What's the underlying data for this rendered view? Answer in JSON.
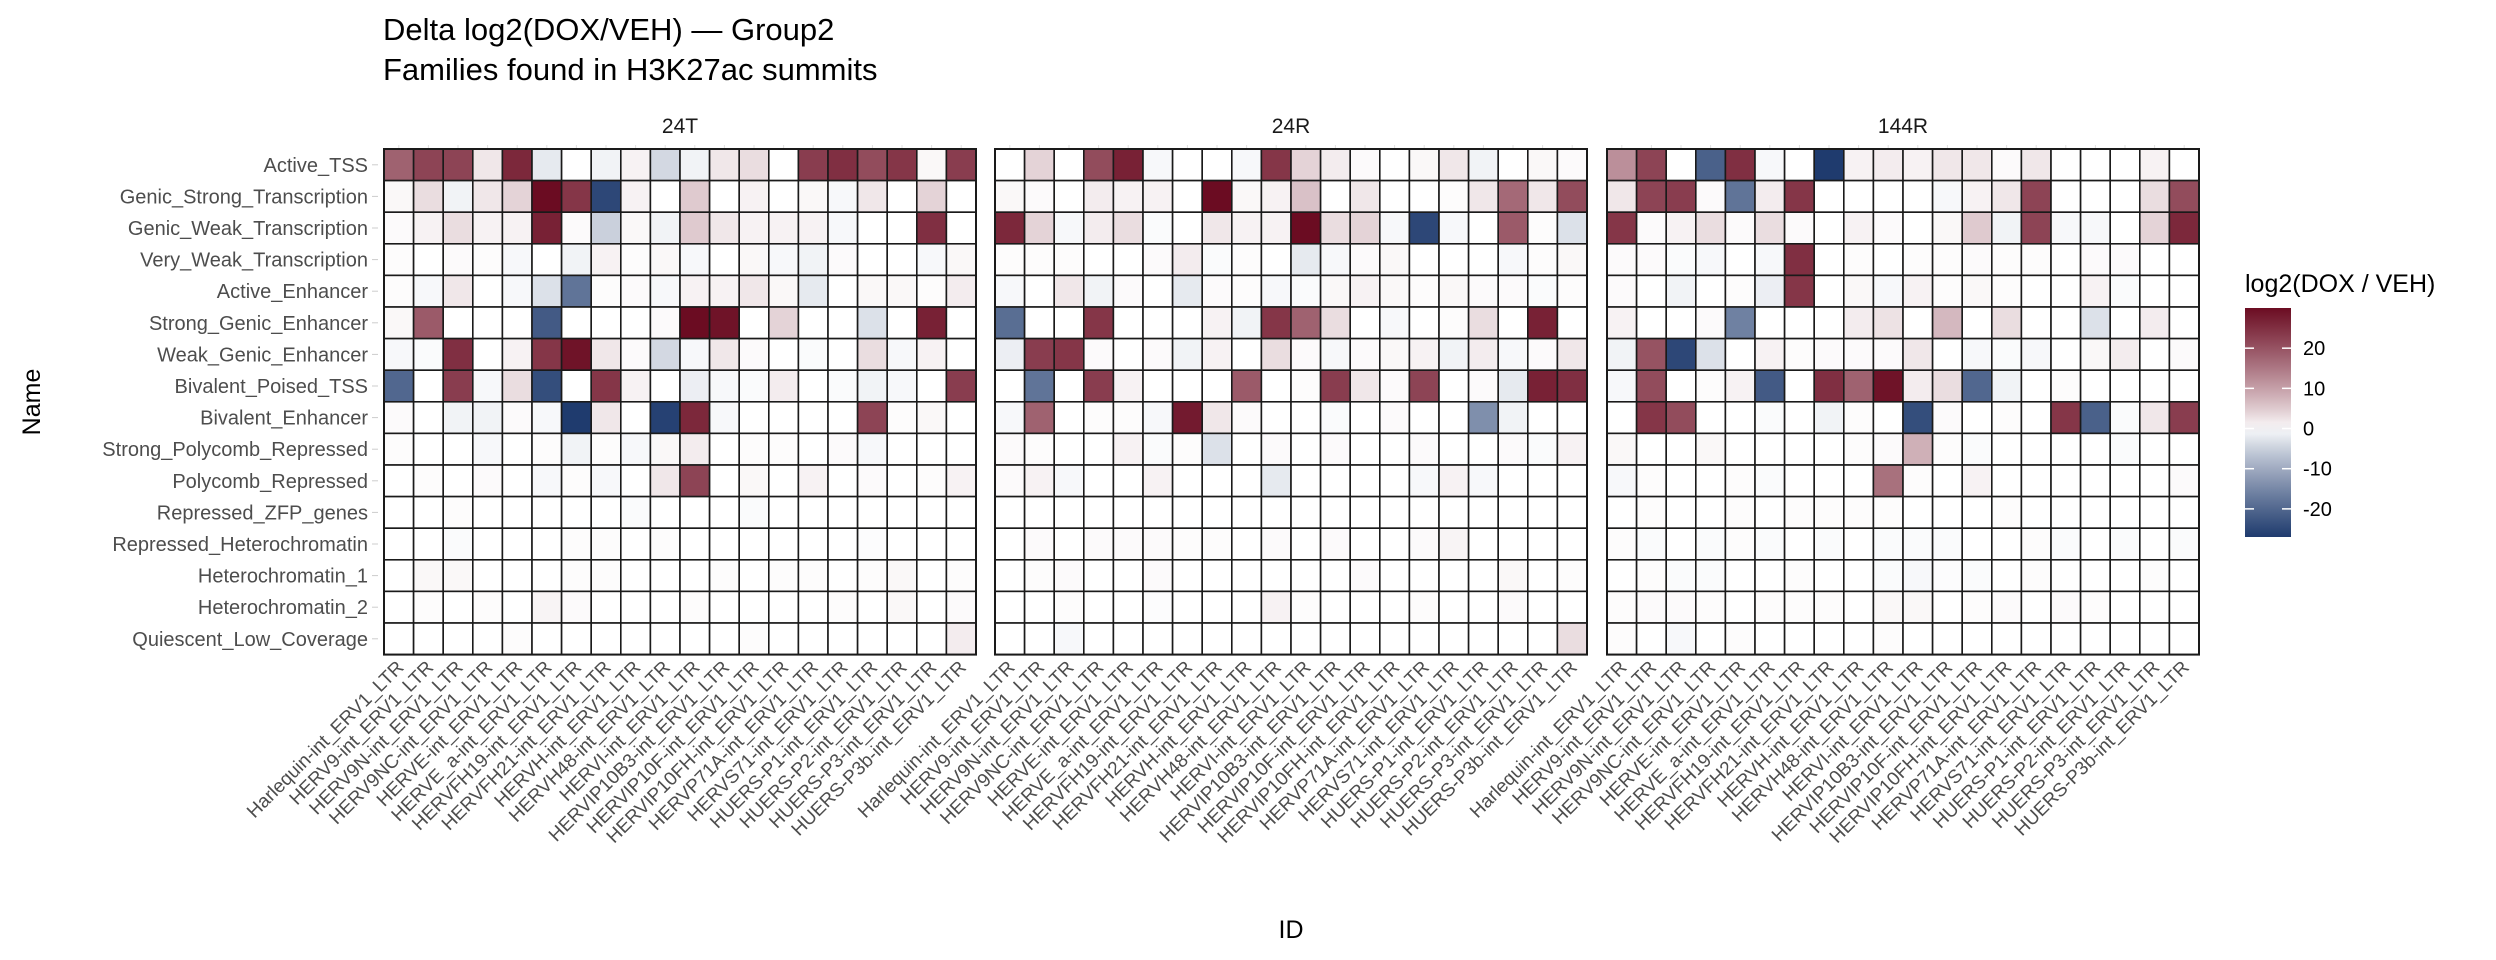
{
  "chart_data": {
    "type": "heatmap",
    "title": "Delta log2(DOX/VEH) — Group2",
    "subtitle": "Families found in H3K27ac summits",
    "xlabel": "ID",
    "ylabel": "Name",
    "legend": {
      "title": "log2(DOX / VEH)",
      "ticks": [
        20,
        10,
        0,
        -10,
        -20
      ],
      "tick_labels": [
        "20",
        "10",
        "0",
        "-10",
        "-20"
      ],
      "range": [
        -27,
        30
      ],
      "low_color": "#1f3b6e",
      "mid_color": "#ffffff",
      "high_color": "#6b0c22",
      "placement": "right"
    },
    "rows": [
      "Active_TSS",
      "Genic_Strong_Transcription",
      "Genic_Weak_Transcription",
      "Very_Weak_Transcription",
      "Active_Enhancer",
      "Strong_Genic_Enhancer",
      "Weak_Genic_Enhancer",
      "Bivalent_Poised_TSS",
      "Bivalent_Enhancer",
      "Strong_Polycomb_Repressed",
      "Polycomb_Repressed",
      "Repressed_ZFP_genes",
      "Repressed_Heterochromatin",
      "Heterochromatin_1",
      "Heterochromatin_2",
      "Quiescent_Low_Coverage"
    ],
    "columns": [
      "Harlequin-int_ERV1_LTR",
      "HERV9-int_ERV1_LTR",
      "HERV9N-int_ERV1_LTR",
      "HERV9NC-int_ERV1_LTR",
      "HERVE-int_ERV1_LTR",
      "HERVE_a-int_ERV1_LTR",
      "HERVFH19-int_ERV1_LTR",
      "HERVFH21-int_ERV1_LTR",
      "HERVH-int_ERV1_LTR",
      "HERVH48-int_ERV1_LTR",
      "HERVI-int_ERV1_LTR",
      "HERVIP10B3-int_ERV1_LTR",
      "HERVIP10F-int_ERV1_LTR",
      "HERVIP10FH-int_ERV1_LTR",
      "HERVP71A-int_ERV1_LTR",
      "HERVS71-int_ERV1_LTR",
      "HUERS-P1-int_ERV1_LTR",
      "HUERS-P2-int_ERV1_LTR",
      "HUERS-P3-int_ERV1_LTR",
      "HUERS-P3b-int_ERV1_LTR"
    ],
    "facets": [
      {
        "name": "24T",
        "values": [
          [
            18,
            22,
            22,
            2,
            26,
            -2,
            0,
            -1,
            1,
            -4,
            -1,
            2,
            3,
            0,
            23,
            25,
            21,
            24,
            0.5,
            23
          ],
          [
            0.5,
            3,
            -1,
            2,
            4,
            30,
            24,
            -25,
            1,
            0,
            5,
            0,
            1,
            0,
            0.5,
            -0.5,
            2,
            0,
            4,
            0
          ],
          [
            0.3,
            1,
            3,
            1,
            1,
            27,
            0.3,
            -5,
            0.5,
            -1,
            5,
            2,
            1,
            1,
            1,
            -0.5,
            0,
            0,
            25,
            0
          ],
          [
            0.2,
            0,
            0.3,
            0.2,
            -0.5,
            0,
            -1,
            1,
            0.2,
            0.5,
            -0.5,
            0,
            0.5,
            -0.5,
            -1,
            0.3,
            0,
            0,
            -0.5,
            0.5
          ],
          [
            0.2,
            -0.5,
            2,
            0,
            -0.5,
            -3,
            -18,
            0.2,
            0.3,
            -0.5,
            1,
            1,
            2,
            0.5,
            -2,
            0,
            0.5,
            0.5,
            0.2,
            1.5
          ],
          [
            0.5,
            19,
            0,
            0,
            0,
            -22,
            0,
            0,
            0,
            0.3,
            30,
            29,
            0,
            4,
            0,
            0,
            -3,
            0,
            27,
            0
          ],
          [
            -0.5,
            -0.3,
            25,
            0,
            1,
            24,
            29,
            2,
            0.3,
            -4,
            -0.5,
            2,
            0.3,
            0,
            -0.3,
            0,
            3,
            -0.5,
            1,
            0
          ],
          [
            -20,
            0,
            23,
            -0.5,
            3,
            -24,
            0,
            24,
            1,
            0,
            -1.5,
            -0.5,
            -0.3,
            1.5,
            0,
            -0.3,
            -1,
            -0.5,
            0,
            23
          ],
          [
            0.3,
            0,
            -1,
            -1,
            0.3,
            -0.5,
            -28,
            2,
            0,
            -26,
            26,
            -0.5,
            0,
            0,
            0,
            0,
            22,
            0.2,
            0.5,
            0
          ],
          [
            0.2,
            0,
            0,
            -0.5,
            0,
            0.2,
            -1,
            0.2,
            -0.5,
            0.5,
            1.5,
            0,
            0.2,
            0.2,
            0,
            0.3,
            -0.5,
            0,
            0,
            0
          ],
          [
            0,
            0.2,
            0,
            0.3,
            0,
            -0.5,
            0.2,
            -0.5,
            0,
            2,
            22,
            0,
            0.5,
            0,
            1,
            0,
            0.3,
            0,
            0.2,
            1
          ],
          [
            0,
            0,
            0.2,
            0,
            0,
            0,
            0,
            0,
            -0.3,
            0,
            0,
            0,
            -0.3,
            0,
            0,
            0,
            0,
            0,
            0,
            0
          ],
          [
            0,
            0,
            -0.3,
            0,
            0,
            0,
            0.2,
            0.2,
            0,
            0.2,
            0,
            0,
            0,
            0,
            0,
            0,
            -0.2,
            0,
            0,
            0
          ],
          [
            0,
            0.5,
            0.5,
            0,
            0,
            0,
            0.2,
            0.2,
            0,
            0,
            0,
            0.2,
            0,
            0.2,
            0.2,
            0,
            0.2,
            0.5,
            0,
            0.2
          ],
          [
            0,
            0.2,
            0,
            0.2,
            0,
            0.8,
            0.3,
            0,
            0,
            0,
            0.2,
            0,
            0,
            0,
            0,
            0.2,
            0,
            0.5,
            0,
            0.3
          ],
          [
            0,
            0,
            0,
            0,
            0.2,
            0,
            0,
            0,
            0,
            0,
            0,
            0,
            0.2,
            0,
            0,
            0,
            0,
            0,
            0,
            1.5
          ]
        ]
      },
      {
        "name": "24R",
        "values": [
          [
            0,
            4,
            0,
            21,
            27,
            -0.5,
            0,
            0,
            -0.5,
            24,
            4,
            1.5,
            0.3,
            0,
            0.5,
            2,
            -1,
            0,
            0.5,
            0.3
          ],
          [
            0.5,
            0.3,
            0,
            1.5,
            1,
            1,
            0,
            30,
            0.5,
            1,
            6,
            0,
            2,
            0,
            0,
            0.2,
            2,
            17,
            2,
            21
          ],
          [
            26,
            4,
            -0.5,
            1.5,
            3,
            -0.3,
            0,
            2,
            1,
            1,
            34,
            3,
            4,
            -0.5,
            -25,
            -0.5,
            0,
            19,
            0.2,
            -3
          ],
          [
            0.2,
            0.2,
            0.2,
            0,
            0,
            0.3,
            1.5,
            -0.3,
            0.2,
            0,
            -2,
            -0.5,
            0.3,
            0.5,
            0,
            0,
            0,
            -0.5,
            0.2,
            0.5
          ],
          [
            -0.5,
            0,
            2,
            -1,
            0.3,
            0,
            -2,
            0.3,
            0.2,
            -0.5,
            -0.3,
            0.5,
            1,
            0.5,
            0.2,
            0.5,
            0.3,
            0.3,
            -0.3,
            0.2
          ],
          [
            -19,
            0,
            0,
            24,
            0,
            0,
            0,
            1,
            -1,
            24,
            18,
            3,
            0,
            -0.5,
            0,
            0.2,
            3,
            0,
            27,
            0
          ],
          [
            -1.5,
            23,
            24,
            0.3,
            0,
            0.3,
            -1,
            1,
            0,
            3,
            0.3,
            -0.5,
            0.3,
            0.5,
            1,
            -1,
            1.5,
            -0.5,
            0.3,
            2
          ],
          [
            0,
            -18,
            0,
            23,
            1,
            0,
            0,
            0,
            19,
            0,
            0.2,
            23,
            2,
            0.3,
            22,
            0,
            0.3,
            -2,
            27,
            25
          ],
          [
            -0.5,
            18,
            0,
            0.2,
            0.2,
            -0.5,
            28,
            2,
            0.3,
            0,
            0,
            -0.3,
            0,
            0.3,
            0,
            0,
            -14,
            -1,
            0,
            0
          ],
          [
            0.3,
            0.2,
            0,
            0,
            1,
            -0.3,
            0.2,
            -3,
            0,
            0.3,
            0,
            0.3,
            0,
            0,
            0.3,
            0,
            0,
            0.3,
            -0.3,
            1
          ],
          [
            0.3,
            1,
            -0.5,
            0,
            0,
            1,
            0,
            0,
            0,
            -2,
            0,
            0,
            0,
            0,
            -0.5,
            1,
            -0.5,
            0,
            0,
            0
          ],
          [
            0,
            0,
            0,
            0,
            0,
            0,
            0,
            0,
            0,
            0,
            0,
            0,
            0,
            0,
            0,
            0,
            0,
            0,
            0,
            0
          ],
          [
            0,
            0.3,
            0,
            0.3,
            0.3,
            0.3,
            0.2,
            0.2,
            0,
            0.3,
            0,
            0.3,
            0,
            0,
            0.3,
            0.8,
            0,
            0,
            0,
            0
          ],
          [
            0,
            0.2,
            0.3,
            0,
            0,
            0.3,
            0,
            0,
            0,
            0,
            0,
            0,
            0.3,
            0,
            0,
            0,
            0,
            0.5,
            0,
            0.2
          ],
          [
            0,
            0,
            0.2,
            0,
            0,
            -0.2,
            0,
            0,
            0,
            1,
            0.2,
            0,
            0,
            0,
            0.2,
            0,
            0,
            0.3,
            0,
            0
          ],
          [
            0,
            0,
            -0.5,
            0,
            0,
            0,
            0,
            0,
            0,
            0,
            0,
            0,
            0,
            0,
            0,
            0,
            0,
            0,
            0,
            3
          ]
        ]
      },
      {
        "name": "144R",
        "values": [
          [
            12,
            22,
            0,
            -21,
            25,
            -0.5,
            0,
            -28,
            1,
            1.5,
            1,
            2,
            2,
            0.3,
            2,
            0,
            0,
            0,
            1,
            0
          ],
          [
            2,
            22,
            23,
            0.3,
            -18,
            1.5,
            24,
            0,
            0,
            0,
            0,
            -0.5,
            1,
            2,
            22,
            0,
            0,
            0,
            3,
            21
          ],
          [
            24,
            0.3,
            1,
            3,
            0.3,
            3,
            0.3,
            0,
            1,
            0.3,
            0,
            0.5,
            5,
            -1,
            22,
            -0.5,
            -0.5,
            0,
            4,
            26
          ],
          [
            0.3,
            0.3,
            -0.3,
            -0.5,
            0,
            -0.5,
            25,
            0,
            0.2,
            0,
            0.2,
            0.2,
            0.3,
            0.2,
            0.2,
            0,
            0.3,
            0.3,
            0,
            0
          ],
          [
            0.3,
            0,
            -1,
            0,
            0.2,
            -1.5,
            24,
            0,
            0.5,
            -0.5,
            1,
            0.2,
            0.5,
            0.2,
            0,
            0,
            1,
            -0.3,
            0,
            0
          ],
          [
            1,
            0,
            0,
            0.3,
            -16,
            0,
            0,
            0,
            1.5,
            2.5,
            0,
            7,
            0,
            3,
            0,
            0,
            -3,
            0,
            1.5,
            0
          ],
          [
            -1,
            20,
            -25,
            -3,
            0,
            1,
            0.2,
            0.3,
            0.3,
            0.3,
            2,
            0,
            -0.5,
            -0.3,
            -0.5,
            0,
            0.5,
            1.5,
            0,
            0.3
          ],
          [
            -0.5,
            21,
            0,
            0.2,
            1,
            -22,
            0,
            25,
            18,
            29,
            1.5,
            3,
            -20,
            -1,
            0,
            0.2,
            0,
            0,
            0,
            0
          ],
          [
            0,
            24,
            21,
            0,
            0,
            -0.3,
            0,
            -1,
            0.2,
            0,
            -24,
            0.3,
            0,
            0.2,
            0,
            24,
            -21,
            -0.3,
            2,
            23
          ],
          [
            0.5,
            0,
            0,
            0.5,
            0,
            0,
            0,
            0,
            0.2,
            0.3,
            8,
            0.2,
            -0.3,
            0,
            0,
            0,
            0,
            -0.3,
            0,
            0
          ],
          [
            -0.5,
            0.2,
            0,
            0,
            0.2,
            -0.3,
            0,
            0,
            0,
            16,
            0.2,
            0,
            1,
            0,
            0,
            0,
            0,
            0,
            0,
            0.3
          ],
          [
            0,
            0.2,
            0,
            0,
            0.2,
            0,
            0.2,
            0.2,
            0.2,
            0.2,
            0,
            0,
            0,
            0.2,
            0,
            0,
            0,
            0,
            0,
            0
          ],
          [
            0.2,
            -0.3,
            0,
            -0.3,
            0.2,
            -0.3,
            0,
            -0.3,
            0,
            -0.3,
            -0.3,
            -0.3,
            0,
            0,
            0.2,
            -0.3,
            0,
            -0.3,
            0,
            -0.3
          ],
          [
            0,
            0.2,
            -0.3,
            -0.3,
            0,
            0,
            0.2,
            0,
            0,
            -0.3,
            -0.5,
            -0.2,
            -0.3,
            0,
            0.2,
            0,
            0,
            0,
            0.2,
            0
          ],
          [
            0.2,
            0.3,
            0.3,
            0.2,
            0,
            0.2,
            0.2,
            0.2,
            0,
            0.5,
            0.5,
            0,
            0.2,
            0.3,
            0,
            0.3,
            0.2,
            0,
            0,
            0
          ],
          [
            0.2,
            0,
            -0.5,
            0,
            0.2,
            0,
            0,
            0,
            0,
            0.2,
            0,
            0,
            0,
            0,
            0,
            0,
            0,
            0,
            0,
            0
          ]
        ]
      }
    ]
  }
}
